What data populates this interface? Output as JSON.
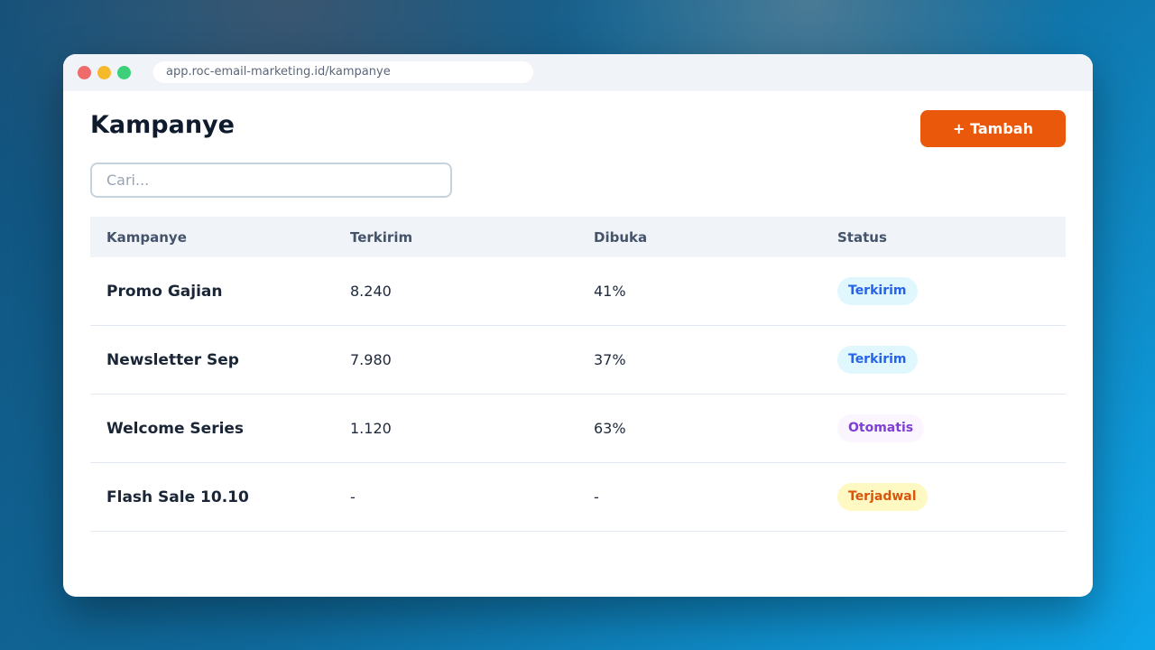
{
  "browser": {
    "url": "app.roc-email-marketing.id/kampanye"
  },
  "page": {
    "title": "Kampanye",
    "add_button_label": "+ Tambah",
    "search_placeholder": "Cari..."
  },
  "table": {
    "headers": [
      "Kampanye",
      "Terkirim",
      "Dibuka",
      "Status"
    ],
    "rows": [
      {
        "name": "Promo Gajian",
        "sent": "8.240",
        "opened": "41%",
        "status": "Terkirim",
        "status_color": "#2563eb",
        "status_bg": "#e0f7fe"
      },
      {
        "name": "Newsletter Sep",
        "sent": "7.980",
        "opened": "37%",
        "status": "Terkirim",
        "status_color": "#2563eb",
        "status_bg": "#e0f7fe"
      },
      {
        "name": "Welcome Series",
        "sent": "1.120",
        "opened": "63%",
        "status": "Otomatis",
        "status_color": "#7e3fd4",
        "status_bg": "#fbf5ff"
      },
      {
        "name": "Flash Sale 10.10",
        "sent": "-",
        "opened": "-",
        "status": "Terjadwal",
        "status_color": "#d9550b",
        "status_bg": "#fef9c3"
      }
    ]
  },
  "colors": {
    "accent": "#ea580c",
    "title": "#0f1b2d",
    "header_bg": "#f0f4f8"
  }
}
